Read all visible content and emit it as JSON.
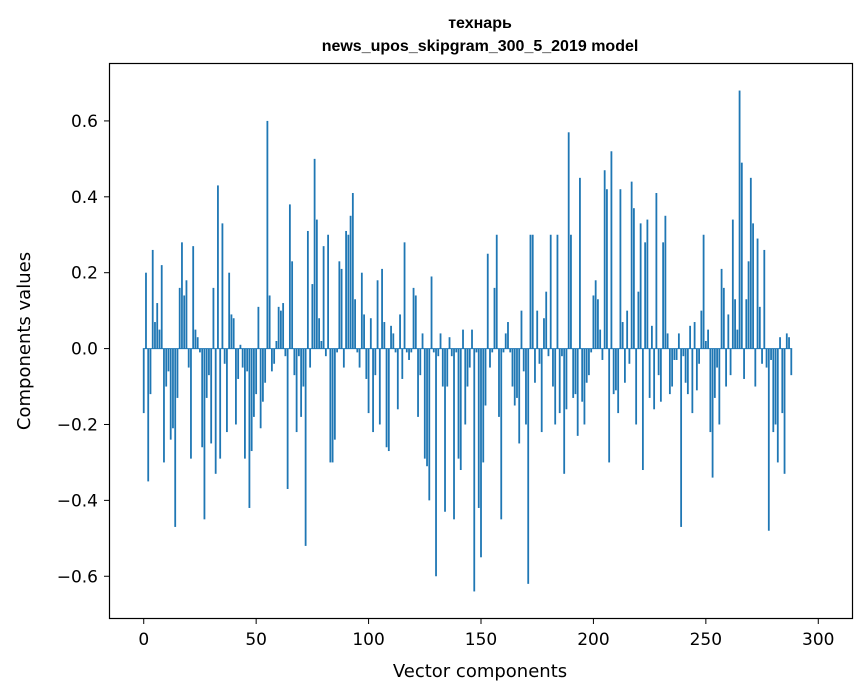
{
  "chart_data": {
    "type": "bar",
    "title_line1": "технарь",
    "title_line2": "news_upos_skipgram_300_5_2019 model",
    "xlabel": "Vector components",
    "ylabel": "Components values",
    "xlim": [
      -15,
      315
    ],
    "ylim": [
      -0.71,
      0.75
    ],
    "x_ticks": [
      0,
      50,
      100,
      150,
      200,
      250,
      300
    ],
    "x_tick_labels": [
      "0",
      "50",
      "100",
      "150",
      "200",
      "250",
      "300"
    ],
    "y_ticks": [
      0.6,
      0.4,
      0.2,
      0.0,
      -0.2,
      -0.4,
      -0.6
    ],
    "y_tick_labels": [
      "0.6",
      "0.4",
      "0.2",
      "0.0",
      "−0.2",
      "−0.4",
      "−0.6"
    ],
    "bar_color": "#1f77b4",
    "grid": false,
    "values": [
      -0.17,
      0.2,
      -0.35,
      -0.12,
      0.26,
      0.07,
      0.12,
      0.05,
      0.22,
      -0.3,
      -0.1,
      -0.06,
      -0.24,
      -0.21,
      -0.47,
      -0.13,
      0.16,
      0.28,
      0.14,
      0.18,
      -0.05,
      -0.29,
      0.27,
      0.05,
      0.03,
      -0.01,
      -0.26,
      -0.45,
      -0.13,
      -0.07,
      -0.25,
      0.16,
      -0.33,
      0.43,
      -0.29,
      0.33,
      -0.04,
      -0.22,
      0.2,
      0.09,
      0.08,
      -0.2,
      -0.08,
      0.01,
      -0.05,
      -0.29,
      -0.06,
      -0.42,
      -0.27,
      -0.18,
      -0.12,
      0.11,
      -0.21,
      -0.14,
      -0.09,
      0.6,
      0.14,
      -0.06,
      -0.04,
      0.02,
      0.11,
      0.1,
      0.12,
      -0.02,
      -0.37,
      0.38,
      0.23,
      -0.07,
      -0.22,
      -0.02,
      -0.18,
      -0.1,
      -0.52,
      0.31,
      -0.05,
      0.17,
      0.5,
      0.34,
      0.08,
      0.02,
      0.27,
      -0.02,
      0.3,
      -0.3,
      -0.3,
      -0.24,
      -0.01,
      0.23,
      0.21,
      -0.05,
      0.31,
      0.3,
      0.35,
      0.41,
      0.13,
      -0.01,
      -0.05,
      0.2,
      0.09,
      -0.08,
      -0.17,
      0.08,
      -0.22,
      -0.07,
      0.18,
      -0.2,
      0.21,
      0.07,
      -0.26,
      -0.27,
      0.06,
      0.04,
      -0.01,
      -0.16,
      0.09,
      -0.08,
      0.28,
      -0.01,
      -0.03,
      -0.01,
      0.16,
      0.14,
      -0.18,
      -0.07,
      0.04,
      -0.29,
      -0.31,
      -0.4,
      0.19,
      -0.01,
      -0.6,
      -0.02,
      0.04,
      -0.1,
      -0.43,
      -0.1,
      0.03,
      -0.02,
      -0.45,
      -0.01,
      -0.29,
      -0.32,
      0.05,
      -0.2,
      -0.1,
      -0.05,
      0.05,
      -0.64,
      -0.01,
      -0.42,
      -0.55,
      -0.3,
      -0.15,
      0.25,
      -0.05,
      -0.01,
      0.16,
      0.3,
      -0.18,
      -0.45,
      -0.01,
      0.04,
      0.07,
      -0.01,
      -0.1,
      -0.15,
      -0.13,
      -0.25,
      0.1,
      -0.06,
      -0.2,
      -0.62,
      0.3,
      0.3,
      -0.09,
      0.1,
      -0.04,
      -0.22,
      0.08,
      0.15,
      -0.02,
      0.3,
      -0.1,
      -0.2,
      0.3,
      -0.17,
      -0.02,
      -0.33,
      -0.16,
      0.57,
      0.3,
      -0.13,
      -0.12,
      -0.23,
      0.45,
      -0.14,
      -0.2,
      -0.09,
      -0.07,
      -0.01,
      0.14,
      0.18,
      0.13,
      0.05,
      -0.03,
      0.47,
      0.42,
      -0.3,
      0.52,
      -0.12,
      -0.11,
      -0.17,
      0.42,
      0.07,
      -0.09,
      0.1,
      -0.04,
      0.44,
      0.37,
      -0.2,
      0.15,
      0.33,
      -0.32,
      0.28,
      0.34,
      -0.13,
      0.06,
      -0.16,
      0.41,
      -0.07,
      -0.14,
      0.28,
      0.35,
      0.04,
      -0.12,
      -0.1,
      -0.03,
      -0.03,
      0.04,
      -0.47,
      -0.02,
      -0.09,
      -0.12,
      0.06,
      -0.17,
      0.07,
      -0.11,
      -0.04,
      0.1,
      0.3,
      0.02,
      0.05,
      -0.22,
      -0.34,
      -0.13,
      -0.05,
      -0.2,
      0.21,
      0.16,
      -0.1,
      0.09,
      -0.07,
      0.34,
      0.13,
      0.05,
      0.68,
      0.49,
      -0.08,
      0.13,
      0.23,
      0.45,
      0.33,
      -0.1,
      0.29,
      0.11,
      -0.04,
      0.26,
      -0.05,
      -0.48,
      -0.03,
      -0.22,
      -0.2,
      -0.3,
      0.03,
      -0.17,
      -0.33,
      0.04,
      0.03,
      -0.07
    ]
  }
}
